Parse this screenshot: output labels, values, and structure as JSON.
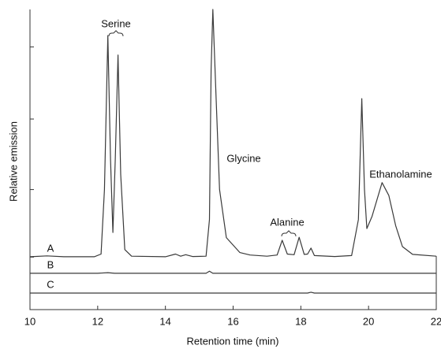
{
  "chart_data": {
    "type": "line",
    "x_label": "Retention time (min)",
    "y_label": "Relative emission",
    "xlim": [
      10,
      22
    ],
    "xticks": [
      10,
      12,
      14,
      16,
      18,
      20,
      22
    ],
    "ylim": [
      0,
      100
    ],
    "yticks": [
      17.5,
      40,
      63.5,
      87.5
    ],
    "color": "#3a3a3a",
    "annotations": [
      "Serine",
      "Glycine",
      "Alanine",
      "Ethanolamine"
    ],
    "series": [
      {
        "name": "A",
        "x": [
          10.0,
          10.5,
          11.0,
          11.9,
          12.1,
          12.2,
          12.3,
          12.38,
          12.45,
          12.52,
          12.6,
          12.68,
          12.8,
          13.0,
          14.0,
          14.3,
          14.45,
          14.6,
          14.8,
          15.2,
          15.3,
          15.35,
          15.4,
          15.5,
          15.6,
          15.8,
          16.2,
          16.5,
          17.0,
          17.3,
          17.45,
          17.6,
          17.8,
          17.95,
          18.1,
          18.2,
          18.3,
          18.4,
          19.0,
          19.5,
          19.7,
          19.8,
          19.88,
          19.95,
          20.1,
          20.4,
          20.6,
          20.8,
          21.0,
          21.3,
          22.0
        ],
        "values": [
          17.6,
          17.9,
          17.6,
          17.6,
          18.5,
          40,
          91.3,
          50,
          25.7,
          50,
          84.8,
          45,
          20,
          17.8,
          17.6,
          18.5,
          17.8,
          18.3,
          17.7,
          17.8,
          30,
          80,
          100,
          70,
          40,
          24,
          19,
          18.2,
          17.8,
          18.2,
          23.1,
          18.5,
          18.3,
          24.1,
          18.4,
          18.5,
          20.5,
          18,
          17.7,
          18,
          30,
          70.3,
          40,
          27,
          31,
          42.3,
          38,
          28,
          21,
          18.4,
          17.8
        ]
      },
      {
        "name": "B",
        "x": [
          10.0,
          12.0,
          12.3,
          12.5,
          15.2,
          15.3,
          15.4,
          22.0
        ],
        "values": [
          12.1,
          12.1,
          12.3,
          12.1,
          12.1,
          12.8,
          12.1,
          12.1
        ]
      },
      {
        "name": "C",
        "x": [
          10.0,
          18.2,
          18.3,
          18.4,
          22.0
        ],
        "values": [
          5.5,
          5.5,
          5.8,
          5.5,
          5.5
        ]
      }
    ]
  }
}
